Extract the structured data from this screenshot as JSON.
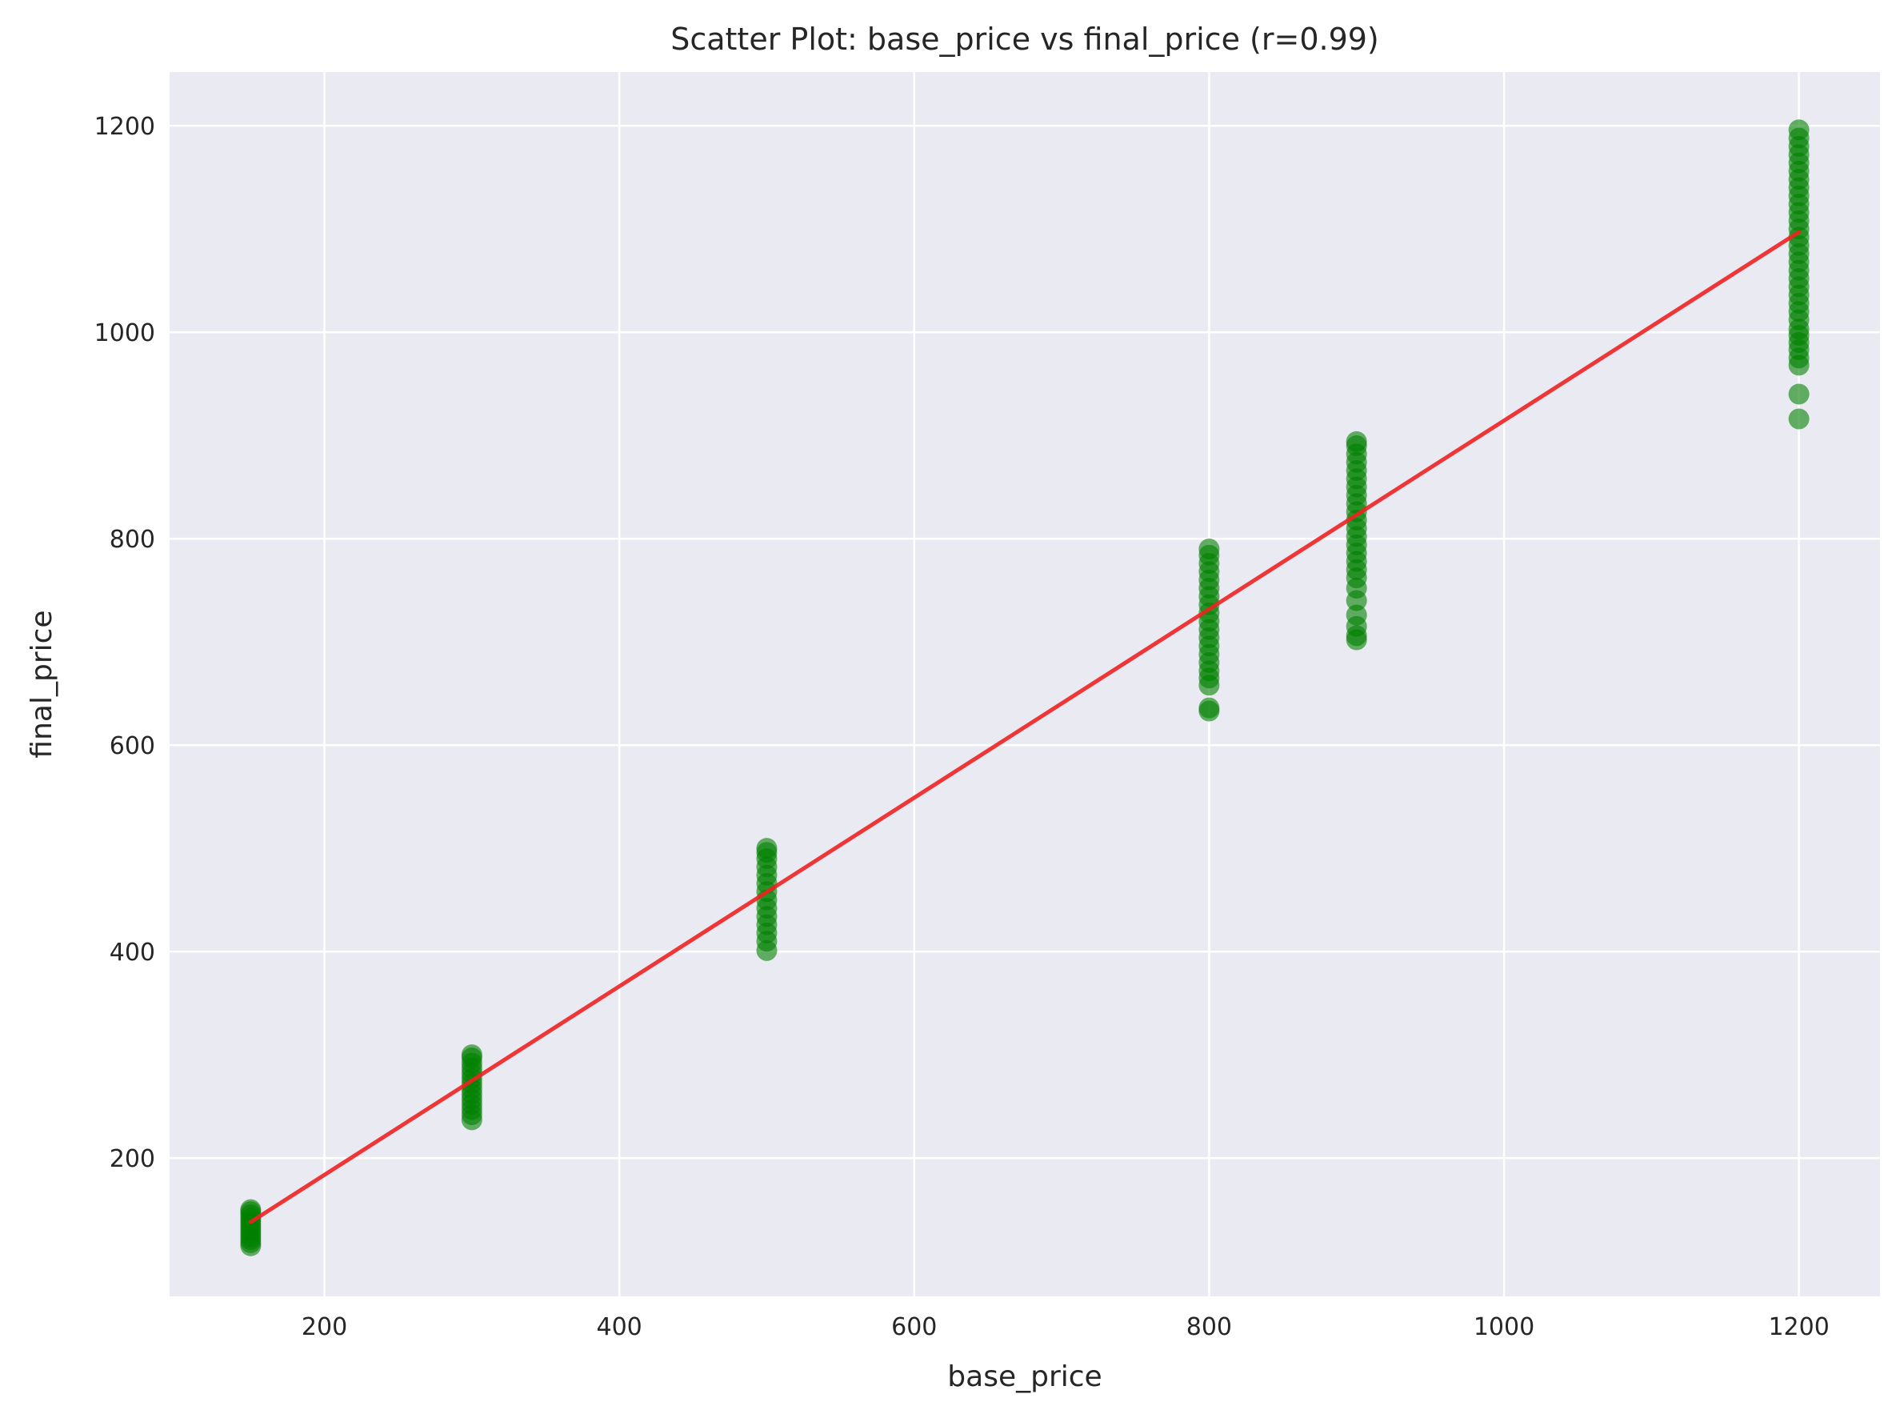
{
  "chart_data": {
    "type": "scatter",
    "title": "Scatter Plot: base_price vs final_price (r=0.99)",
    "xlabel": "base_price",
    "ylabel": "final_price",
    "xlim": [
      95,
      1255
    ],
    "ylim": [
      66,
      1252
    ],
    "xticks": [
      200,
      400,
      600,
      800,
      1000,
      1200
    ],
    "yticks": [
      200,
      400,
      600,
      800,
      1000,
      1200
    ],
    "grid": true,
    "legend": "none",
    "colors": {
      "background": "#eaeaf2",
      "grid": "#ffffff",
      "points": "#008000",
      "trend": "#ee2222"
    },
    "point_alpha": 0.6,
    "series": [
      {
        "points_by_x": [
          {
            "x": 150,
            "y": [
              115,
              118,
              121,
              124,
              127,
              130,
              133,
              136,
              139,
              142,
              145,
              148,
              150
            ]
          },
          {
            "x": 300,
            "y": [
              237,
              242,
              247,
              252,
              257,
              262,
              267,
              272,
              277,
              282,
              287,
              292,
              297,
              300
            ]
          },
          {
            "x": 500,
            "y": [
              401,
              410,
              418,
              426,
              434,
              442,
              450,
              458,
              466,
              474,
              482,
              490,
              496,
              500
            ]
          },
          {
            "x": 800,
            "y": [
              633,
              636,
              658,
              665,
              672,
              680,
              688,
              696,
              704,
              712,
              720,
              728,
              736,
              744,
              752,
              760,
              768,
              776,
              784,
              790
            ]
          },
          {
            "x": 900,
            "y": [
              702,
              706,
              715,
              726,
              740,
              752,
              762,
              770,
              778,
              786,
              794,
              802,
              810,
              818,
              826,
              834,
              842,
              850,
              858,
              866,
              874,
              882,
              890,
              894
            ]
          },
          {
            "x": 1200,
            "y": [
              916,
              940,
              968,
              975,
              983,
              990,
              997,
              1003,
              1012,
              1020,
              1028,
              1036,
              1044,
              1052,
              1060,
              1068,
              1076,
              1084,
              1092,
              1100,
              1108,
              1116,
              1124,
              1132,
              1140,
              1148,
              1156,
              1164,
              1172,
              1180,
              1188,
              1196
            ]
          }
        ]
      }
    ],
    "trend_line": {
      "x": [
        150,
        1200
      ],
      "y": [
        138,
        1097
      ]
    }
  }
}
